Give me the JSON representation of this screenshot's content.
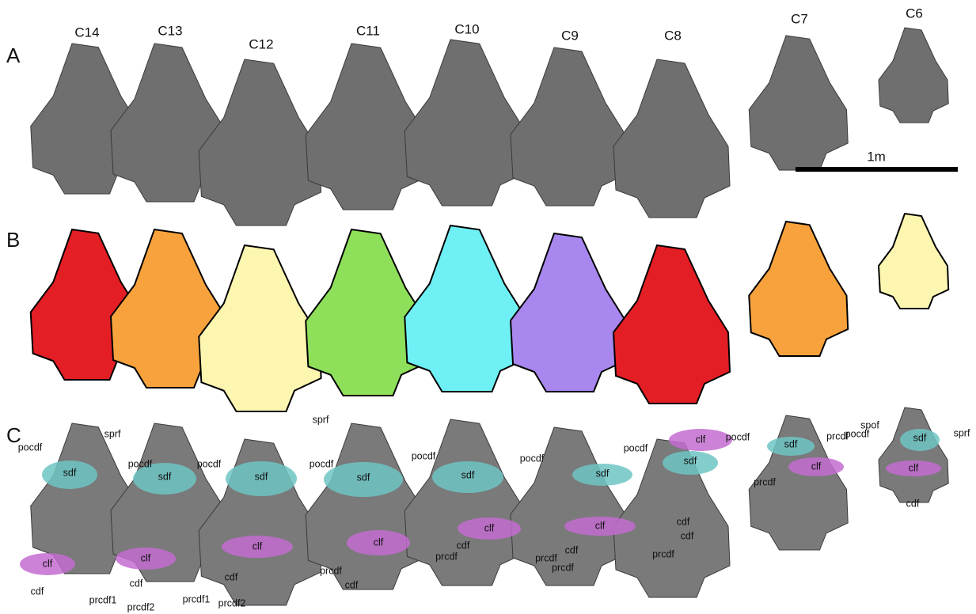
{
  "panels": [
    {
      "label": "A",
      "vertebrae": [
        "C14",
        "C13",
        "C12",
        "C11",
        "C10",
        "C9",
        "C8",
        "C7",
        "C6"
      ],
      "scale_bar": "1m"
    },
    {
      "label": "B"
    },
    {
      "label": "C",
      "annotations": [
        "sprf",
        "pocdf",
        "pocdf",
        "sdf",
        "sdf",
        "pocdf",
        "sprf",
        "pocdf",
        "sdf",
        "sdf",
        "pocdf",
        "sdf",
        "pocdf",
        "sdf",
        "pocdf",
        "sdf",
        "pocdf",
        "prcdf",
        "sdf",
        "clf",
        "spof",
        "pocdf",
        "sdf",
        "sprf",
        "clf",
        "cdf",
        "clf",
        "clf",
        "clf",
        "clf",
        "clf",
        "clf",
        "clf",
        "cdf",
        "cdf",
        "prcdf1",
        "prcdf2",
        "cdf",
        "prcdf1",
        "prcdf2",
        "prcdf",
        "cdf",
        "prcdf",
        "cdf",
        "prcdf",
        "cdf",
        "prcdf",
        "cdf",
        "prcdf",
        "cdf",
        "prcdf"
      ]
    }
  ]
}
